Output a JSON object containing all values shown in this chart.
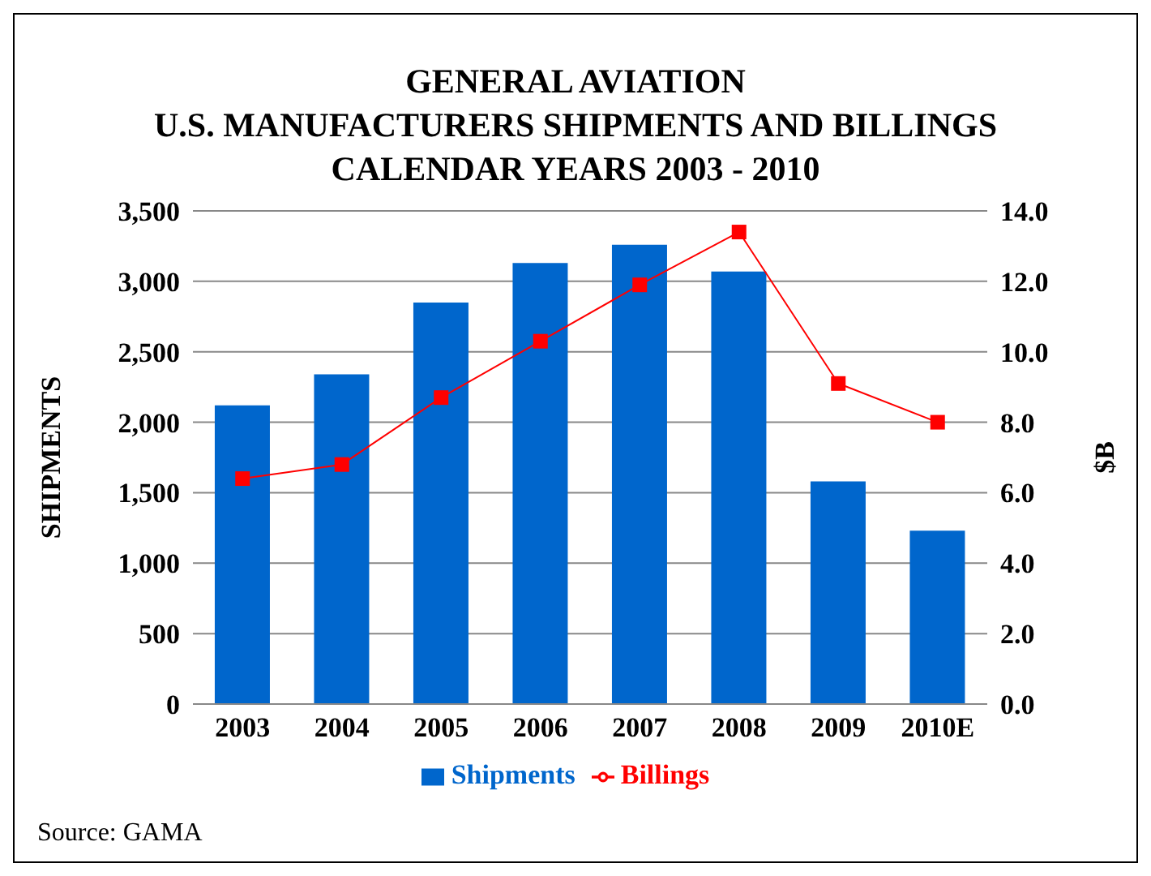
{
  "chart_data": {
    "type": "bar",
    "title": "GENERAL AVIATION\nU.S. MANUFACTURERS SHIPMENTS AND BILLINGS\nCALENDAR YEARS 2003 - 2010",
    "ylabel": "SHIPMENTS",
    "y2label": "$B",
    "categories": [
      "2003",
      "2004",
      "2005",
      "2006",
      "2007",
      "2008",
      "2009",
      "2010E"
    ],
    "series": [
      {
        "name": "Shipments",
        "color": "#0066cc",
        "values": [
          2120,
          2340,
          2850,
          3130,
          3260,
          3070,
          1580,
          1230
        ]
      },
      {
        "name": "Billings",
        "type": "line",
        "axis": "y2",
        "color": "#ff0000",
        "values": [
          6.4,
          6.8,
          8.7,
          10.3,
          11.9,
          13.4,
          9.1,
          8.0
        ]
      }
    ],
    "ylim": [
      0,
      3500
    ],
    "yticks": [
      {
        "value": 0,
        "label": "0"
      },
      {
        "value": 500,
        "label": "500"
      },
      {
        "value": 1000,
        "label": "1,000"
      },
      {
        "value": 1500,
        "label": "1,500"
      },
      {
        "value": 2000,
        "label": "2,000"
      },
      {
        "value": 2500,
        "label": "2,500"
      },
      {
        "value": 3000,
        "label": "3,000"
      },
      {
        "value": 3500,
        "label": "3,500"
      }
    ],
    "y2lim": [
      0,
      14
    ],
    "y2ticks": [
      {
        "value": 0,
        "label": "0.0"
      },
      {
        "value": 2,
        "label": "2.0"
      },
      {
        "value": 4,
        "label": "4.0"
      },
      {
        "value": 6,
        "label": "6.0"
      },
      {
        "value": 8,
        "label": "8.0"
      },
      {
        "value": 10,
        "label": "10.0"
      },
      {
        "value": 12,
        "label": "12.0"
      },
      {
        "value": 14,
        "label": "14.0"
      }
    ],
    "grid": "y",
    "legend": "bottom",
    "marker": "square",
    "line_style": "solid",
    "annotations": [
      "Source: GAMA"
    ]
  }
}
